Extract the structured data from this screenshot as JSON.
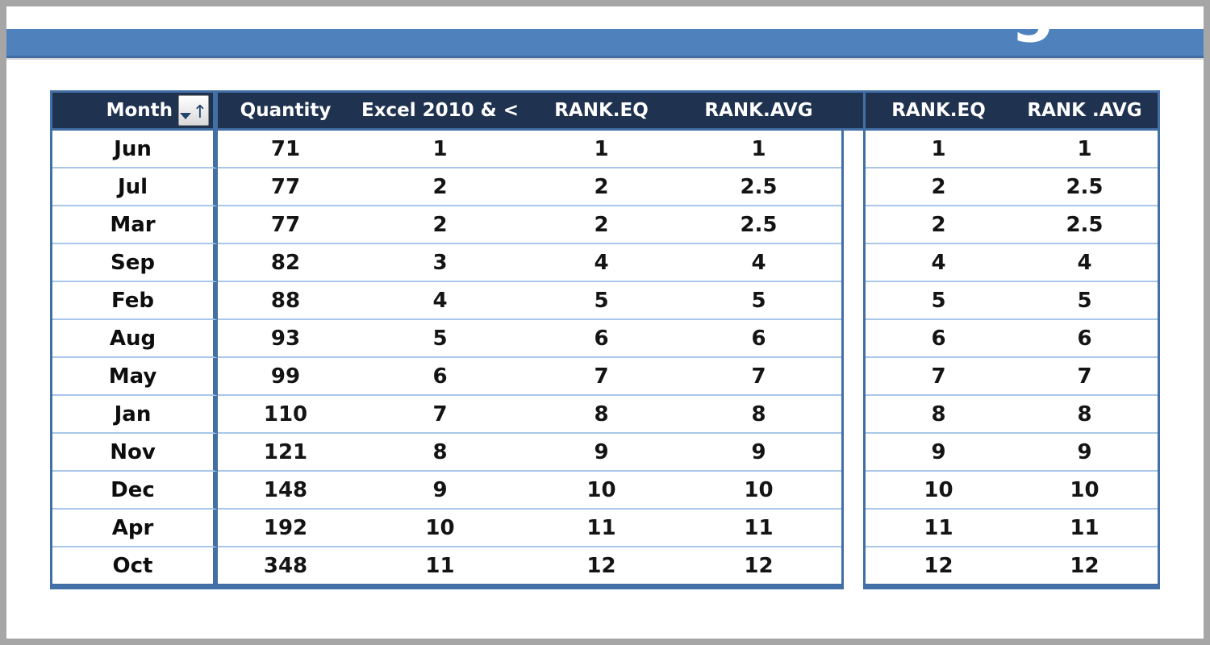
{
  "title_bar": {
    "visible_text_fragment": "g",
    "bar_color": "#4F81BD",
    "text_color": "#FFFFFF"
  },
  "left_table": {
    "columns": [
      "Month",
      "Quantity",
      "Excel 2010 & <",
      "RANK.EQ",
      "RANK.AVG"
    ],
    "month_sort_state": "sorted-ascending-with-filter",
    "rows": [
      [
        "Jun",
        "71",
        "1",
        "1",
        "1"
      ],
      [
        "Jul",
        "77",
        "2",
        "2",
        "2.5"
      ],
      [
        "Mar",
        "77",
        "2",
        "2",
        "2.5"
      ],
      [
        "Sep",
        "82",
        "3",
        "4",
        "4"
      ],
      [
        "Feb",
        "88",
        "4",
        "5",
        "5"
      ],
      [
        "Aug",
        "93",
        "5",
        "6",
        "6"
      ],
      [
        "May",
        "99",
        "6",
        "7",
        "7"
      ],
      [
        "Jan",
        "110",
        "7",
        "8",
        "8"
      ],
      [
        "Nov",
        "121",
        "8",
        "9",
        "9"
      ],
      [
        "Dec",
        "148",
        "9",
        "10",
        "10"
      ],
      [
        "Apr",
        "192",
        "10",
        "11",
        "11"
      ],
      [
        "Oct",
        "348",
        "11",
        "12",
        "12"
      ]
    ]
  },
  "right_table": {
    "columns": [
      "RANK.EQ",
      "RANK .AVG"
    ],
    "rows": [
      [
        "1",
        "1"
      ],
      [
        "2",
        "2.5"
      ],
      [
        "2",
        "2.5"
      ],
      [
        "4",
        "4"
      ],
      [
        "5",
        "5"
      ],
      [
        "6",
        "6"
      ],
      [
        "7",
        "7"
      ],
      [
        "8",
        "8"
      ],
      [
        "9",
        "9"
      ],
      [
        "10",
        "10"
      ],
      [
        "11",
        "11"
      ],
      [
        "12",
        "12"
      ]
    ]
  },
  "colors": {
    "outer_border": "#A6A6A6",
    "accent_bar": "#4F81BD",
    "header_navy": "#1F3250",
    "table_border_blue": "#426FA5",
    "row_line_blue": "#A9C7E8"
  }
}
